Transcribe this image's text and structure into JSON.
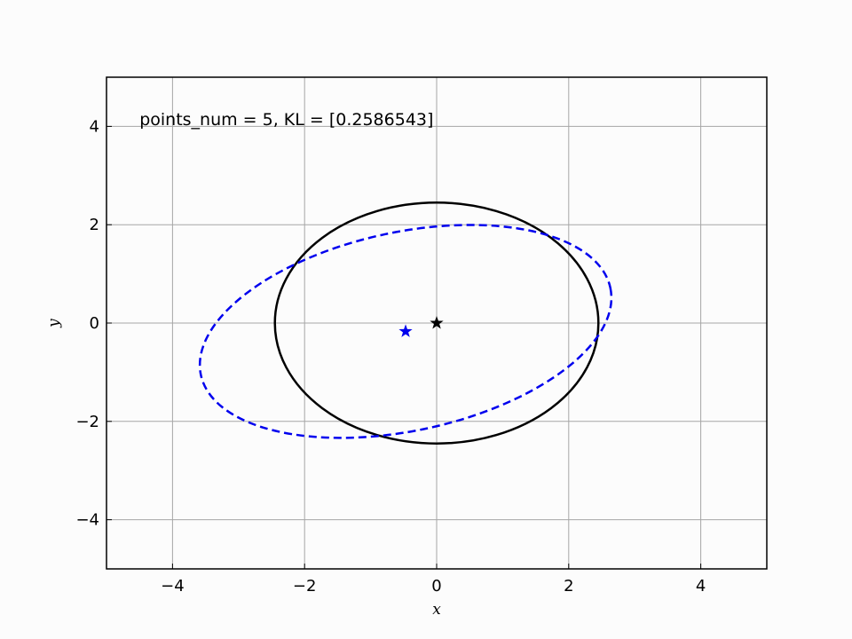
{
  "chart_data": {
    "type": "scatter",
    "annotation": "points_num = 5, KL = [0.2586543]",
    "xlabel": "x",
    "ylabel": "y",
    "xlim": [
      -5,
      5
    ],
    "ylim": [
      -5,
      5
    ],
    "xticks": [
      -4,
      -2,
      0,
      2,
      4
    ],
    "yticks": [
      -4,
      -2,
      0,
      2,
      4
    ],
    "xtick_labels": [
      "−4",
      "−2",
      "0",
      "2",
      "4"
    ],
    "ytick_labels": [
      "−4",
      "−2",
      "0",
      "2",
      "4"
    ],
    "grid": true,
    "series": [
      {
        "kind": "ellipse",
        "style": "solid",
        "color": "#000000",
        "center": [
          0,
          0
        ],
        "semi_axes": [
          2.45,
          2.45
        ],
        "angle_deg": 0
      },
      {
        "kind": "ellipse",
        "style": "dashed",
        "color": "#0000ee",
        "center": [
          -0.47,
          -0.17
        ],
        "semi_axes": [
          3.17,
          2.02
        ],
        "angle_deg": 12
      },
      {
        "kind": "marker",
        "marker": "star",
        "color": "#000000",
        "x": 0,
        "y": 0
      },
      {
        "kind": "marker",
        "marker": "star",
        "color": "#0000ee",
        "x": -0.47,
        "y": -0.17
      }
    ]
  }
}
